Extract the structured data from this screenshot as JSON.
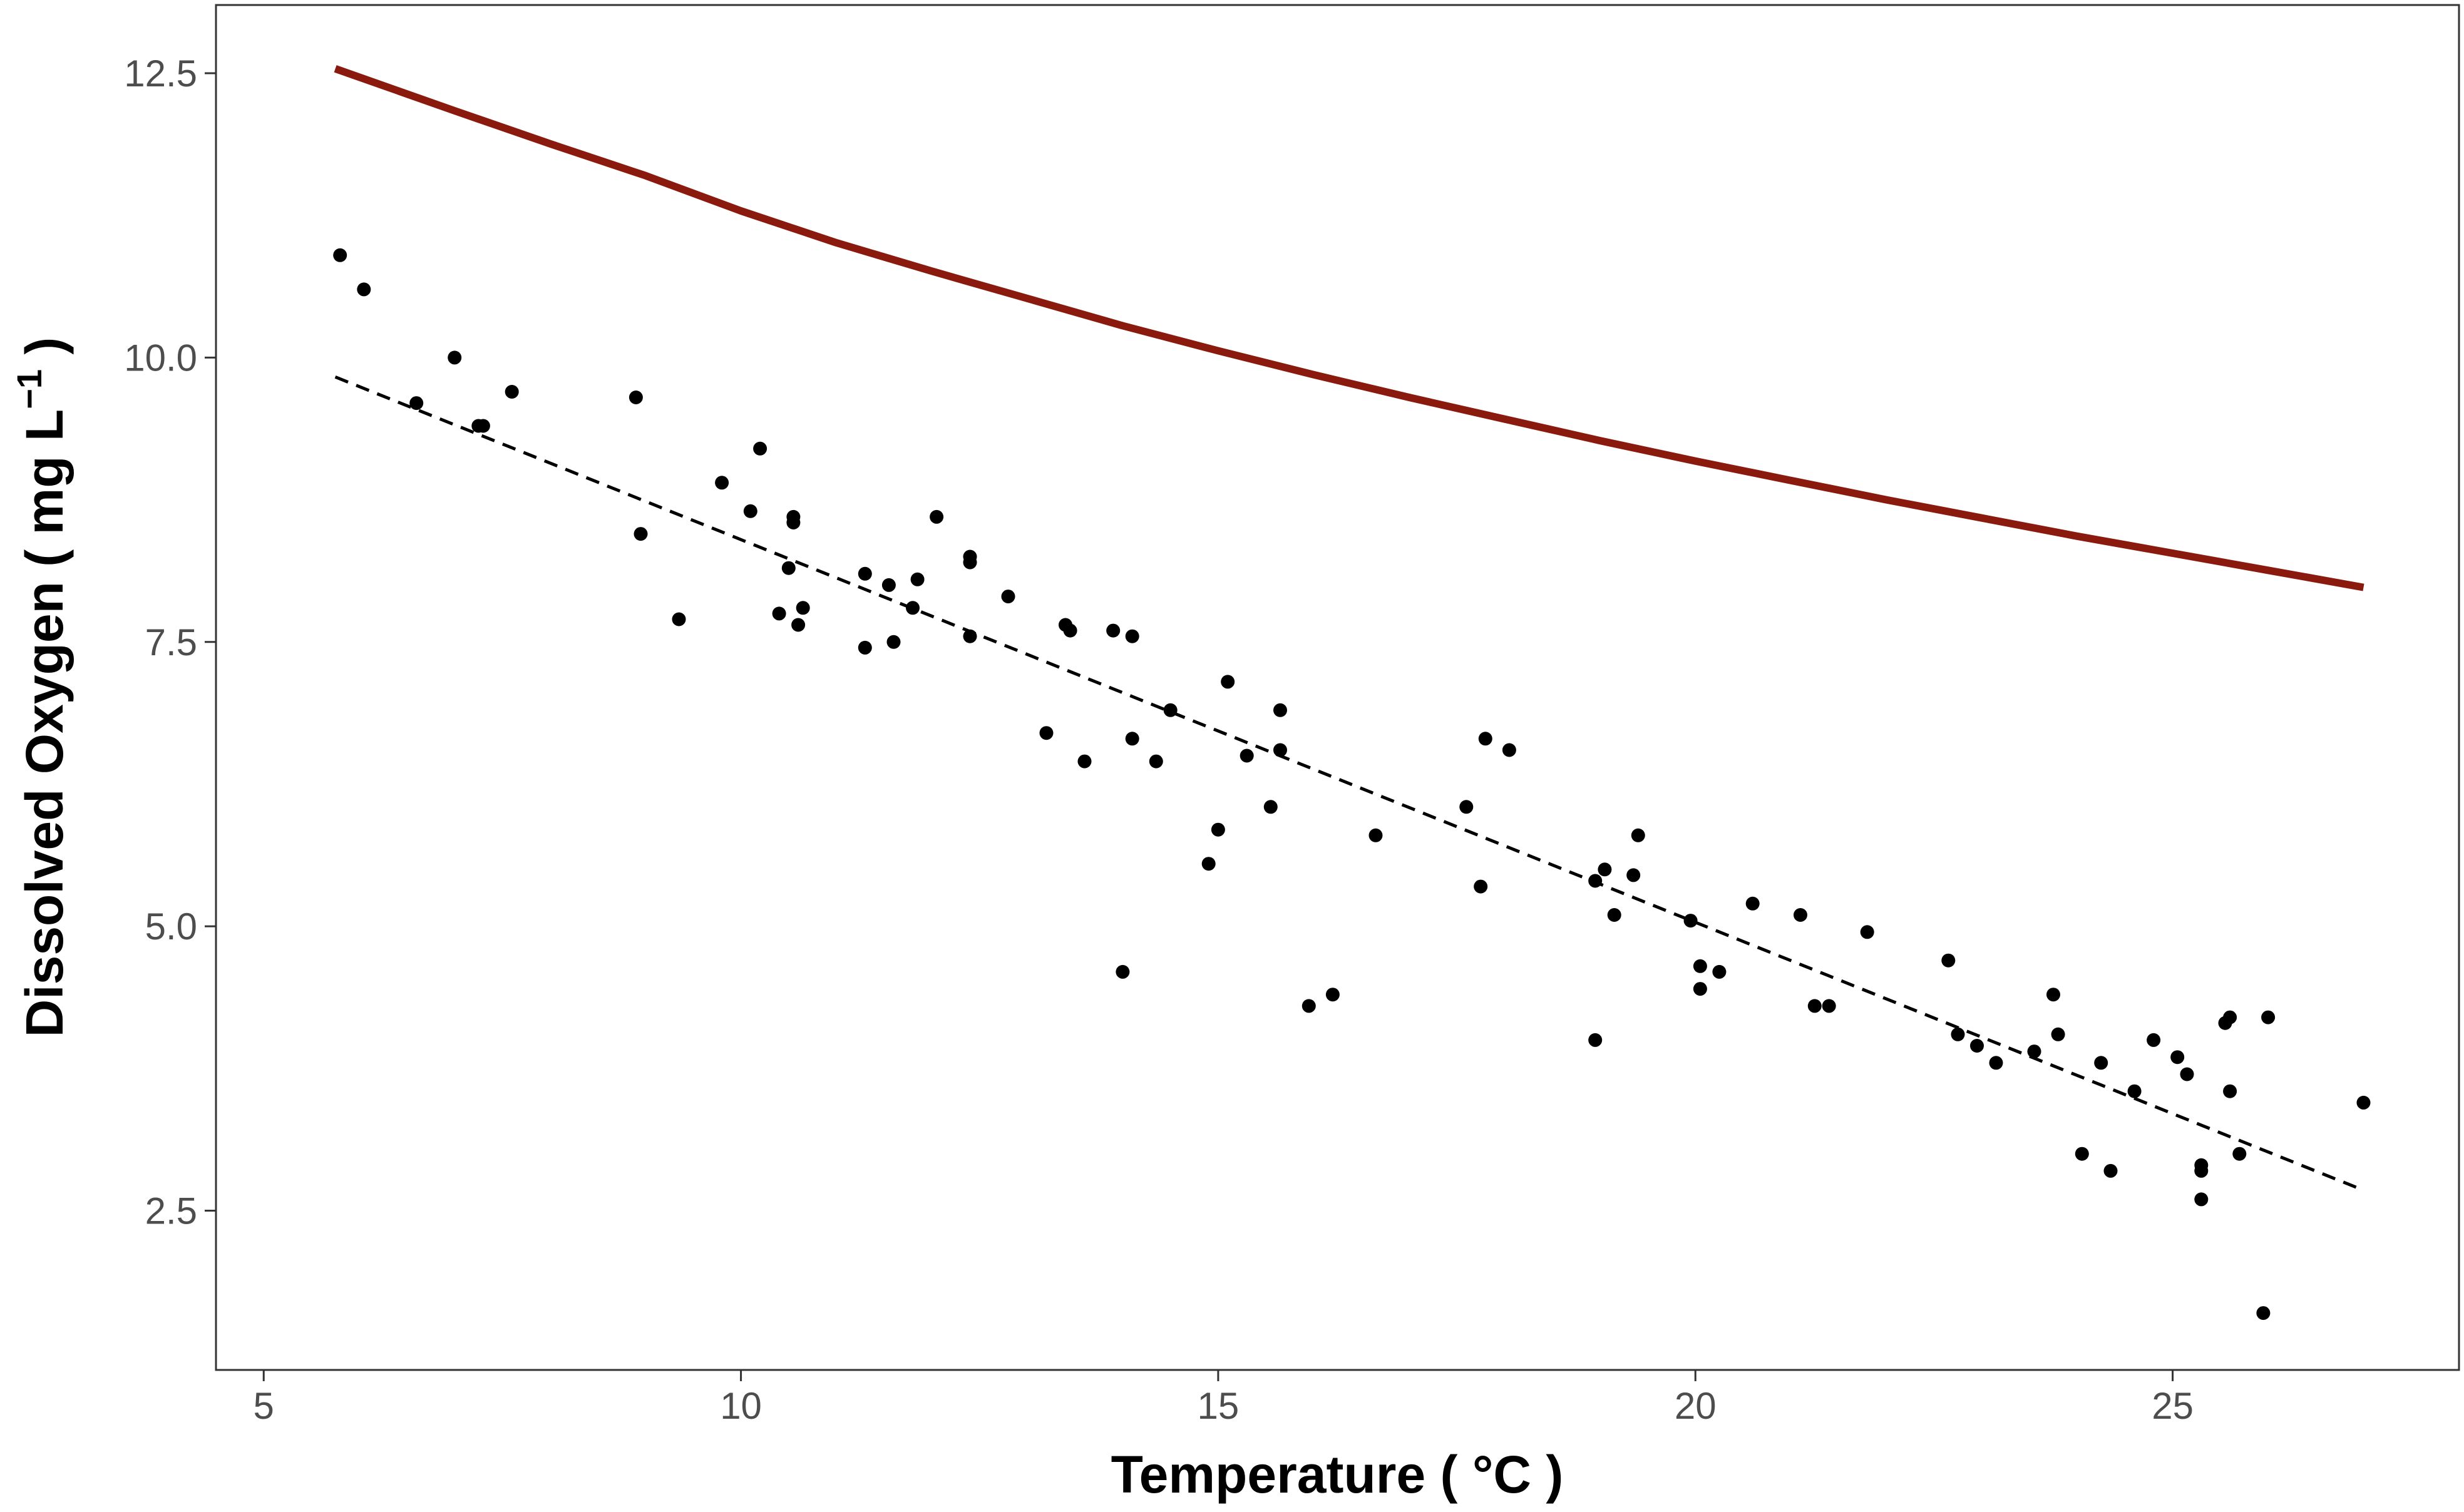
{
  "chart_data": {
    "type": "scatter",
    "xlabel": {
      "main": "Temperature ( °C )"
    },
    "ylabel": {
      "main": "Dissolved Oxygen ( mg L",
      "superscript": "−1",
      "close": " )"
    },
    "xlim": [
      4.5,
      28
    ],
    "ylim": [
      1.1,
      13.1
    ],
    "x_ticks": [
      5,
      10,
      15,
      20,
      25
    ],
    "y_ticks": [
      2.5,
      5.0,
      7.5,
      10.0,
      12.5
    ],
    "y_tick_labels": [
      "2.5",
      "5.0",
      "7.5",
      "10.0",
      "12.5"
    ],
    "grid": false,
    "legend": "none",
    "colors": {
      "saturation_curve": "#8B1A0E",
      "points": "#000000",
      "trend": "#000000",
      "panel_border": "#333333"
    },
    "series": [
      {
        "kind": "curve",
        "style": "solid",
        "x": [
          5.75,
          7,
          8,
          9,
          10,
          11,
          12,
          13,
          14,
          15,
          16,
          17,
          18,
          19,
          20,
          21,
          22,
          23,
          24,
          25,
          26,
          27
        ],
        "y": [
          12.54,
          12.17,
          11.88,
          11.6,
          11.29,
          11.01,
          10.76,
          10.52,
          10.28,
          10.06,
          9.85,
          9.65,
          9.46,
          9.27,
          9.09,
          8.92,
          8.75,
          8.59,
          8.43,
          8.28,
          8.13,
          7.98
        ]
      },
      {
        "kind": "trend",
        "style": "dashed",
        "x": [
          5.75,
          27
        ],
        "y": [
          9.83,
          2.68
        ]
      },
      {
        "kind": "points",
        "points": [
          [
            5.8,
            10.9
          ],
          [
            6.05,
            10.6
          ],
          [
            6.6,
            9.6
          ],
          [
            7,
            10.0
          ],
          [
            7.25,
            9.4
          ],
          [
            7.3,
            9.4
          ],
          [
            7.6,
            9.7
          ],
          [
            8.9,
            9.65
          ],
          [
            8.95,
            8.45
          ],
          [
            9.35,
            7.7
          ],
          [
            9.8,
            8.9
          ],
          [
            10.1,
            8.65
          ],
          [
            10.2,
            9.2
          ],
          [
            10.4,
            7.75
          ],
          [
            10.5,
            8.15
          ],
          [
            10.55,
            8.6
          ],
          [
            10.55,
            8.55
          ],
          [
            10.6,
            7.65
          ],
          [
            10.65,
            7.8
          ],
          [
            11.3,
            7.45
          ],
          [
            11.3,
            8.1
          ],
          [
            11.55,
            8.0
          ],
          [
            11.6,
            7.5
          ],
          [
            11.8,
            7.8
          ],
          [
            11.85,
            8.05
          ],
          [
            12.05,
            8.6
          ],
          [
            12.4,
            7.55
          ],
          [
            12.4,
            8.2
          ],
          [
            12.4,
            8.25
          ],
          [
            12.8,
            7.9
          ],
          [
            13.2,
            6.7
          ],
          [
            13.4,
            7.65
          ],
          [
            13.45,
            7.6
          ],
          [
            13.6,
            6.45
          ],
          [
            13.9,
            7.6
          ],
          [
            14.0,
            4.6
          ],
          [
            14.1,
            6.65
          ],
          [
            14.1,
            7.55
          ],
          [
            14.35,
            6.45
          ],
          [
            14.5,
            6.9
          ],
          [
            14.9,
            5.55
          ],
          [
            15.0,
            5.85
          ],
          [
            15.1,
            7.15
          ],
          [
            15.3,
            6.5
          ],
          [
            15.55,
            6.05
          ],
          [
            15.65,
            6.55
          ],
          [
            15.65,
            6.9
          ],
          [
            15.95,
            4.3
          ],
          [
            16.2,
            4.4
          ],
          [
            16.65,
            5.8
          ],
          [
            17.6,
            6.05
          ],
          [
            17.75,
            5.35
          ],
          [
            17.8,
            6.65
          ],
          [
            18.05,
            6.55
          ],
          [
            18.95,
            4.0
          ],
          [
            18.95,
            5.4
          ],
          [
            19.05,
            5.5
          ],
          [
            19.15,
            5.1
          ],
          [
            19.35,
            5.45
          ],
          [
            19.4,
            5.8
          ],
          [
            19.95,
            5.05
          ],
          [
            20.05,
            4.45
          ],
          [
            20.05,
            4.65
          ],
          [
            20.25,
            4.6
          ],
          [
            20.6,
            5.2
          ],
          [
            21.1,
            5.1
          ],
          [
            21.25,
            4.3
          ],
          [
            21.4,
            4.3
          ],
          [
            21.8,
            4.95
          ],
          [
            22.65,
            4.7
          ],
          [
            22.75,
            4.05
          ],
          [
            22.95,
            3.95
          ],
          [
            23.15,
            3.8
          ],
          [
            23.55,
            3.9
          ],
          [
            23.75,
            4.4
          ],
          [
            23.8,
            4.05
          ],
          [
            24.05,
            3.0
          ],
          [
            24.25,
            3.8
          ],
          [
            24.35,
            2.85
          ],
          [
            24.6,
            3.55
          ],
          [
            24.8,
            4.0
          ],
          [
            25.05,
            3.85
          ],
          [
            25.15,
            3.7
          ],
          [
            25.3,
            2.9
          ],
          [
            25.3,
            2.85
          ],
          [
            25.3,
            2.6
          ],
          [
            25.55,
            4.15
          ],
          [
            25.6,
            4.2
          ],
          [
            25.6,
            3.55
          ],
          [
            25.7,
            3.0
          ],
          [
            25.95,
            1.6
          ],
          [
            26.0,
            4.2
          ],
          [
            27.0,
            3.45
          ]
        ]
      }
    ]
  }
}
